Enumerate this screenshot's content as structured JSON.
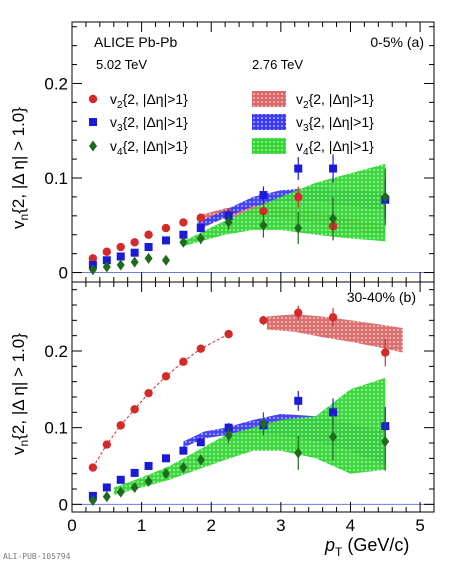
{
  "figure": {
    "experiment_label": "ALICE Pb-Pb",
    "publication_id": "ALI-PUB-105794"
  },
  "legend": {
    "header_502": "5.02 TeV",
    "header_276": "2.76 TeV",
    "entries_502": [
      {
        "prefix": "v",
        "sub": "2",
        "suffix": "{2, |Δη|>1}",
        "marker": "circle",
        "color": "#d42a2a"
      },
      {
        "prefix": "v",
        "sub": "3",
        "suffix": "{2, |Δη|>1}",
        "marker": "square",
        "color": "#1a1ad8"
      },
      {
        "prefix": "v",
        "sub": "4",
        "suffix": "{2, |Δη|>1}",
        "marker": "diamond",
        "color": "#1f6a1f"
      }
    ],
    "entries_276": [
      {
        "prefix": "v",
        "sub": "2",
        "suffix": "{2, |Δη|>1}",
        "color": "#d96868"
      },
      {
        "prefix": "v",
        "sub": "3",
        "suffix": "{2, |Δη|>1}",
        "color": "#3b3bf2"
      },
      {
        "prefix": "v",
        "sub": "4",
        "suffix": "{2, |Δη|>1}",
        "color": "#33d633"
      }
    ]
  },
  "chart_data": [
    {
      "type": "scatter",
      "panel_label": "0-5% (a)",
      "xlabel": {
        "main": "p",
        "sub": "T",
        "unit": " (GeV/c)"
      },
      "ylabel": {
        "main": "v",
        "sub": "n",
        "rest": "{2, |Δ η| > 1.0}"
      },
      "xlim": [
        0,
        5.2
      ],
      "ylim": [
        -0.01,
        0.265
      ],
      "xticks": [
        0,
        1,
        2,
        3,
        4,
        5
      ],
      "yticks": [
        0,
        0.1,
        0.2
      ],
      "ytick_labels": [
        "0",
        "0.1",
        "0.2"
      ],
      "series": [
        {
          "key": "v2_502",
          "color": "#d42a2a",
          "marker": "circle",
          "x": [
            0.3,
            0.5,
            0.7,
            0.9,
            1.1,
            1.35,
            1.6,
            1.85,
            2.25,
            2.75,
            3.25,
            3.75,
            4.5
          ],
          "y": [
            0.015,
            0.022,
            0.027,
            0.032,
            0.04,
            0.047,
            0.053,
            0.058,
            0.062,
            0.065,
            0.08,
            0.049,
            0.079
          ],
          "err": [
            0.002,
            0.002,
            0.002,
            0.002,
            0.002,
            0.003,
            0.003,
            0.003,
            0.005,
            0.008,
            0.011,
            0.014,
            0.02
          ]
        },
        {
          "key": "v3_502",
          "color": "#1a1ad8",
          "marker": "square",
          "x": [
            0.3,
            0.5,
            0.7,
            0.9,
            1.1,
            1.35,
            1.6,
            1.85,
            2.25,
            2.75,
            3.25,
            3.75,
            4.5
          ],
          "y": [
            0.008,
            0.013,
            0.017,
            0.021,
            0.027,
            0.034,
            0.04,
            0.047,
            0.06,
            0.082,
            0.11,
            0.11,
            0.077
          ],
          "err": [
            0.002,
            0.002,
            0.002,
            0.002,
            0.002,
            0.003,
            0.003,
            0.004,
            0.006,
            0.009,
            0.012,
            0.015,
            0.02
          ]
        },
        {
          "key": "v4_502",
          "color": "#1f6a1f",
          "marker": "diamond",
          "x": [
            0.3,
            0.5,
            0.7,
            0.9,
            1.1,
            1.35,
            1.6,
            1.85,
            2.25,
            2.75,
            3.25,
            3.75,
            4.5
          ],
          "y": [
            0.003,
            0.006,
            0.008,
            0.011,
            0.015,
            0.013,
            0.032,
            0.036,
            0.053,
            0.05,
            0.047,
            0.057,
            0.08
          ],
          "err": [
            0.002,
            0.002,
            0.002,
            0.003,
            0.003,
            0.004,
            0.005,
            0.006,
            0.008,
            0.013,
            0.017,
            0.023,
            0.03
          ]
        }
      ],
      "bands": [
        {
          "key": "v2_276",
          "color": "#d96868",
          "x": [
            1.8,
            2.2,
            2.6,
            3.0,
            3.5,
            4.0,
            4.5
          ],
          "low": [
            0.052,
            0.058,
            0.061,
            0.058,
            0.052,
            0.045,
            0.04
          ],
          "high": [
            0.06,
            0.068,
            0.072,
            0.07,
            0.065,
            0.057,
            0.05
          ]
        },
        {
          "key": "v3_276",
          "color": "#3b3bf2",
          "x": [
            1.8,
            2.2,
            2.6,
            3.0,
            3.5,
            4.0,
            4.5
          ],
          "low": [
            0.045,
            0.058,
            0.07,
            0.075,
            0.076,
            0.07,
            0.065
          ],
          "high": [
            0.053,
            0.066,
            0.08,
            0.087,
            0.09,
            0.087,
            0.085
          ]
        },
        {
          "key": "v4_276",
          "color": "#33d633",
          "x": [
            1.6,
            1.9,
            2.2,
            2.6,
            3.0,
            3.5,
            4.0,
            4.5
          ],
          "low": [
            0.028,
            0.034,
            0.04,
            0.045,
            0.045,
            0.04,
            0.036,
            0.033
          ],
          "high": [
            0.033,
            0.044,
            0.055,
            0.068,
            0.08,
            0.095,
            0.105,
            0.115
          ]
        }
      ],
      "legend_position": "top"
    },
    {
      "type": "scatter",
      "panel_label": "30-40% (b)",
      "xlabel": {
        "main": "p",
        "sub": "T",
        "unit": " (GeV/c)"
      },
      "ylabel": {
        "main": "v",
        "sub": "n",
        "rest": "{2, |Δ η| > 1.0}"
      },
      "xlim": [
        0,
        5.2
      ],
      "ylim": [
        -0.01,
        0.29
      ],
      "xticks": [
        0,
        1,
        2,
        3,
        4,
        5
      ],
      "yticks": [
        0,
        0.1,
        0.2
      ],
      "ytick_labels": [
        "0",
        "0.1",
        "0.2"
      ],
      "series": [
        {
          "key": "v2_502",
          "color": "#d42a2a",
          "marker": "circle",
          "x": [
            0.3,
            0.5,
            0.7,
            0.9,
            1.1,
            1.35,
            1.6,
            1.85,
            2.25,
            2.75,
            3.25,
            3.75,
            4.5
          ],
          "y": [
            0.048,
            0.078,
            0.103,
            0.124,
            0.145,
            0.167,
            0.186,
            0.203,
            0.222,
            0.24,
            0.25,
            0.244,
            0.198
          ],
          "err": [
            0.002,
            0.002,
            0.002,
            0.002,
            0.003,
            0.003,
            0.003,
            0.003,
            0.004,
            0.006,
            0.009,
            0.012,
            0.018
          ]
        },
        {
          "key": "v3_502",
          "color": "#1a1ad8",
          "marker": "square",
          "x": [
            0.3,
            0.5,
            0.7,
            0.9,
            1.1,
            1.35,
            1.6,
            1.85,
            2.25,
            2.75,
            3.25,
            3.75,
            4.5
          ],
          "y": [
            0.011,
            0.022,
            0.032,
            0.041,
            0.05,
            0.06,
            0.07,
            0.081,
            0.1,
            0.103,
            0.135,
            0.12,
            0.102
          ],
          "err": [
            0.002,
            0.002,
            0.002,
            0.002,
            0.003,
            0.003,
            0.004,
            0.004,
            0.006,
            0.009,
            0.013,
            0.018,
            0.025
          ]
        },
        {
          "key": "v4_502",
          "color": "#1f6a1f",
          "marker": "diamond",
          "x": [
            0.3,
            0.5,
            0.7,
            0.9,
            1.1,
            1.35,
            1.6,
            1.85,
            2.25,
            2.75,
            3.25,
            3.75,
            4.5
          ],
          "y": [
            0.005,
            0.01,
            0.016,
            0.022,
            0.03,
            0.04,
            0.048,
            0.058,
            0.09,
            0.105,
            0.067,
            0.088,
            0.082
          ],
          "err": [
            0.002,
            0.002,
            0.003,
            0.003,
            0.004,
            0.004,
            0.005,
            0.006,
            0.01,
            0.015,
            0.022,
            0.03,
            0.038
          ]
        }
      ],
      "bands": [
        {
          "key": "v2_276",
          "color": "#d96868",
          "x": [
            2.8,
            3.2,
            3.6,
            4.0,
            4.4,
            4.75
          ],
          "low": [
            0.228,
            0.225,
            0.218,
            0.212,
            0.205,
            0.198
          ],
          "high": [
            0.245,
            0.248,
            0.245,
            0.24,
            0.235,
            0.23
          ]
        },
        {
          "key": "v3_276",
          "color": "#3b3bf2",
          "x": [
            1.6,
            1.9,
            2.2,
            2.6,
            3.0,
            3.5,
            4.0,
            4.5
          ],
          "low": [
            0.074,
            0.086,
            0.09,
            0.093,
            0.09,
            0.082,
            0.07,
            0.05
          ],
          "high": [
            0.082,
            0.095,
            0.1,
            0.11,
            0.118,
            0.115,
            0.105,
            0.095
          ]
        },
        {
          "key": "v4_276",
          "color": "#33d633",
          "x": [
            0.6,
            1.0,
            1.4,
            1.8,
            2.2,
            2.6,
            3.0,
            3.5,
            4.0,
            4.5
          ],
          "low": [
            0.012,
            0.022,
            0.032,
            0.045,
            0.058,
            0.07,
            0.07,
            0.06,
            0.04,
            0.045
          ],
          "high": [
            0.022,
            0.035,
            0.05,
            0.07,
            0.09,
            0.1,
            0.11,
            0.115,
            0.15,
            0.165
          ]
        }
      ],
      "legend_position": "top-right"
    }
  ]
}
